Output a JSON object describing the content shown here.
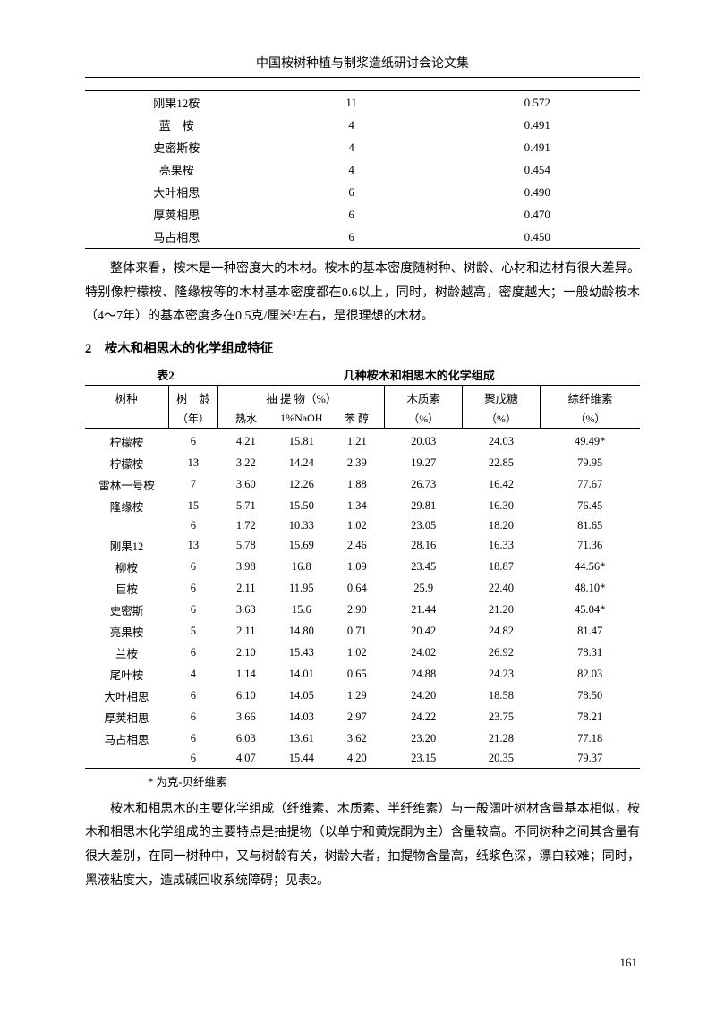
{
  "header": {
    "title": "中国桉树种植与制浆造纸研讨会论文集"
  },
  "table1": {
    "rows": [
      {
        "species": "刚果12桉",
        "v1": "11",
        "v2": "0.572"
      },
      {
        "species": "蓝　桉",
        "v1": "4",
        "v2": "0.491"
      },
      {
        "species": "史密斯桉",
        "v1": "4",
        "v2": "0.491"
      },
      {
        "species": "亮果桉",
        "v1": "4",
        "v2": "0.454"
      },
      {
        "species": "大叶相思",
        "v1": "6",
        "v2": "0.490"
      },
      {
        "species": "厚荚相思",
        "v1": "6",
        "v2": "0.470"
      },
      {
        "species": "马占相思",
        "v1": "6",
        "v2": "0.450"
      }
    ]
  },
  "para1": {
    "text": "整体来看，桉木是一种密度大的木材。桉木的基本密度随树种、树龄、心材和边材有很大差异。特别像柠檬桉、隆缘桉等的木材基本密度都在0.6以上，同时，树龄越高，密度越大；一般幼龄桉木（4～7年）的基本密度多在0.5克/厘米³左右，是很理想的木材。"
  },
  "section2": {
    "heading": "2　桉木和相思木的化学组成特征"
  },
  "table2": {
    "caption_label": "表2",
    "caption_title": "几种桉木和相思木的化学组成",
    "headers": {
      "h1": "树种",
      "h2": "树　龄",
      "h3": "抽 提 物（%）",
      "h4": "木质素",
      "h5": "聚戊糖",
      "h6": "综纤维素",
      "sub_year": "（年）",
      "sub_hot": "热水",
      "sub_naoh": "1%NaOH",
      "sub_ben": "苯 醇",
      "sub_pct4": "（%）",
      "sub_pct5": "（%）",
      "sub_pct6": "（%）"
    },
    "rows": [
      {
        "c0": "柠檬桉",
        "c1": "6",
        "c2": "4.21",
        "c3": "15.81",
        "c4": "1.21",
        "c5": "20.03",
        "c6": "24.03",
        "c7": "49.49*"
      },
      {
        "c0": "柠檬桉",
        "c1": "13",
        "c2": "3.22",
        "c3": "14.24",
        "c4": "2.39",
        "c5": "19.27",
        "c6": "22.85",
        "c7": "79.95"
      },
      {
        "c0": "雷林一号桉",
        "c1": "7",
        "c2": "3.60",
        "c3": "12.26",
        "c4": "1.88",
        "c5": "26.73",
        "c6": "16.42",
        "c7": "77.67"
      },
      {
        "c0": "隆缘桉",
        "c1": "15",
        "c2": "5.71",
        "c3": "15.50",
        "c4": "1.34",
        "c5": "29.81",
        "c6": "16.30",
        "c7": "76.45"
      },
      {
        "c0": "",
        "c1": "6",
        "c2": "1.72",
        "c3": "10.33",
        "c4": "1.02",
        "c5": "23.05",
        "c6": "18.20",
        "c7": "81.65"
      },
      {
        "c0": "刚果12",
        "c1": "13",
        "c2": "5.78",
        "c3": "15.69",
        "c4": "2.46",
        "c5": "28.16",
        "c6": "16.33",
        "c7": "71.36"
      },
      {
        "c0": "柳桉",
        "c1": "6",
        "c2": "3.98",
        "c3": "16.8",
        "c4": "1.09",
        "c5": "23.45",
        "c6": "18.87",
        "c7": "44.56*"
      },
      {
        "c0": "巨桉",
        "c1": "6",
        "c2": "2.11",
        "c3": "11.95",
        "c4": "0.64",
        "c5": "25.9",
        "c6": "22.40",
        "c7": "48.10*"
      },
      {
        "c0": "史密斯",
        "c1": "6",
        "c2": "3.63",
        "c3": "15.6",
        "c4": "2.90",
        "c5": "21.44",
        "c6": "21.20",
        "c7": "45.04*"
      },
      {
        "c0": "亮果桉",
        "c1": "5",
        "c2": "2.11",
        "c3": "14.80",
        "c4": "0.71",
        "c5": "20.42",
        "c6": "24.82",
        "c7": "81.47"
      },
      {
        "c0": "兰桉",
        "c1": "6",
        "c2": "2.10",
        "c3": "15.43",
        "c4": "1.02",
        "c5": "24.02",
        "c6": "26.92",
        "c7": "78.31"
      },
      {
        "c0": "尾叶桉",
        "c1": "4",
        "c2": "1.14",
        "c3": "14.01",
        "c4": "0.65",
        "c5": "24.88",
        "c6": "24.23",
        "c7": "82.03"
      },
      {
        "c0": "大叶相思",
        "c1": "6",
        "c2": "6.10",
        "c3": "14.05",
        "c4": "1.29",
        "c5": "24.20",
        "c6": "18.58",
        "c7": "78.50"
      },
      {
        "c0": "厚荚相思",
        "c1": "6",
        "c2": "3.66",
        "c3": "14.03",
        "c4": "2.97",
        "c5": "24.22",
        "c6": "23.75",
        "c7": "78.21"
      },
      {
        "c0": "马占相思",
        "c1": "6",
        "c2": "6.03",
        "c3": "13.61",
        "c4": "3.62",
        "c5": "23.20",
        "c6": "21.28",
        "c7": "77.18"
      },
      {
        "c0": "",
        "c1": "6",
        "c2": "4.07",
        "c3": "15.44",
        "c4": "4.20",
        "c5": "23.15",
        "c6": "20.35",
        "c7": "79.37"
      }
    ],
    "column_widths": [
      "15%",
      "9%",
      "10%",
      "10%",
      "10%",
      "14%",
      "14%",
      "18%"
    ]
  },
  "footnote": {
    "text": "* 为克-贝纤维素"
  },
  "para2": {
    "text": "桉木和相思木的主要化学组成（纤维素、木质素、半纤维素）与一般阔叶树材含量基本相似，桉木和相思木化学组成的主要特点是抽提物（以单宁和黄烷酮为主）含量较高。不同树种之间其含量有很大差别，在同一树种中，又与树龄有关，树龄大者，抽提物含量高，纸浆色深，漂白较难；同时，黑液粘度大，造成碱回收系统障碍；见表2。"
  },
  "page": {
    "number": "161"
  }
}
